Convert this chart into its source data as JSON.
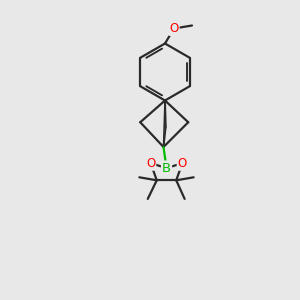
{
  "bg_color": "#e8e8e8",
  "bond_color": "#2a2a2a",
  "bond_width": 1.6,
  "atom_colors": {
    "O": "#ff0000",
    "B": "#00bb00",
    "C": "#2a2a2a"
  },
  "bg_hex": "#e8e8e8",
  "scale": 1.0
}
